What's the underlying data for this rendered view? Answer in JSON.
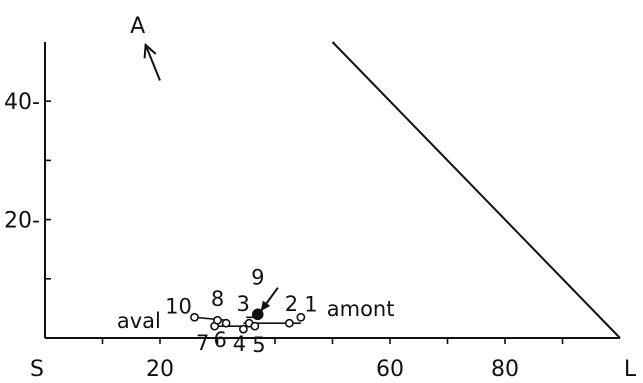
{
  "chart_data": {
    "type": "scatter",
    "title": "",
    "x_axis": {
      "range": [
        0,
        100
      ],
      "ticks": [
        10,
        20,
        30,
        40,
        50,
        60,
        70,
        80,
        90
      ],
      "tick_labels": [
        {
          "value": 20,
          "label": "20"
        },
        {
          "value": 60,
          "label": "60"
        },
        {
          "value": 80,
          "label": "80"
        }
      ],
      "start_label": "S",
      "end_label": "L"
    },
    "y_axis": {
      "range": [
        0,
        50
      ],
      "ticks": [
        10,
        20,
        30,
        40
      ],
      "tick_labels": [
        {
          "value": 20,
          "label": "20-"
        },
        {
          "value": 40,
          "label": "40-"
        }
      ]
    },
    "boundary_line": {
      "from": [
        50,
        50
      ],
      "to": [
        100,
        0
      ]
    },
    "top_arrow": {
      "label": "A",
      "from": [
        20,
        43.5
      ],
      "to": [
        17.5,
        49.5
      ]
    },
    "region_labels": [
      "aval",
      "amont"
    ],
    "points": [
      {
        "label": "1",
        "x": 44.5,
        "y": 3.5,
        "filled": false
      },
      {
        "label": "2",
        "x": 42.5,
        "y": 2.5,
        "filled": false
      },
      {
        "label": "3",
        "x": 35.5,
        "y": 2.5,
        "filled": false
      },
      {
        "label": "4",
        "x": 34.5,
        "y": 1.5,
        "filled": false
      },
      {
        "label": "5",
        "x": 36.5,
        "y": 2.0,
        "filled": false
      },
      {
        "label": "6",
        "x": 31.5,
        "y": 2.5,
        "filled": false
      },
      {
        "label": "7",
        "x": 29.5,
        "y": 2.0,
        "filled": false
      },
      {
        "label": "8",
        "x": 30.0,
        "y": 3.0,
        "filled": false
      },
      {
        "label": "9",
        "x": 37.0,
        "y": 4.0,
        "filled": true
      },
      {
        "label": "10",
        "x": 26.0,
        "y": 3.5,
        "filled": false
      }
    ],
    "segments": [
      {
        "from": [
          26.0,
          3.5
        ],
        "to": [
          31.5,
          3.0
        ]
      },
      {
        "from": [
          29.5,
          2.0
        ],
        "to": [
          34.5,
          2.0
        ]
      },
      {
        "from": [
          34.5,
          2.5
        ],
        "to": [
          44.5,
          2.5
        ]
      },
      {
        "from": [
          35.0,
          3.5
        ],
        "to": [
          37.0,
          3.5
        ]
      }
    ],
    "pointer_arrow": {
      "target": "9",
      "from": [
        40.5,
        8.5
      ],
      "to": [
        37.5,
        4.5
      ]
    },
    "grid": false
  }
}
